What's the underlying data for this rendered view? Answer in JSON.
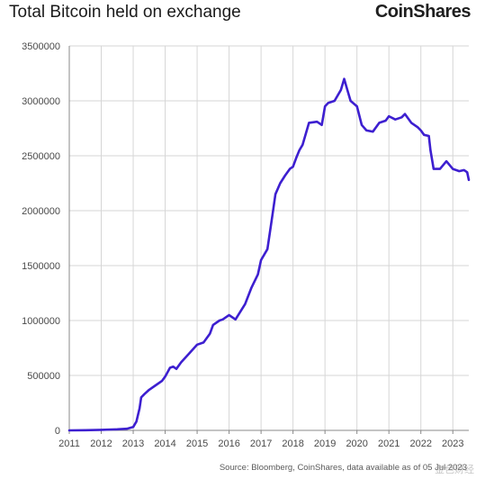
{
  "header": {
    "title": "Total Bitcoin held on exchange",
    "logo": "CoinShares"
  },
  "footer": {
    "source": "Source: Bloomberg, CoinShares, data available as of 05 Jul 2023",
    "watermark": "金色财经"
  },
  "colors": {
    "line": "#3d1fd0",
    "grid": "#d6d6d6",
    "axis": "#888888"
  },
  "chart_data": {
    "type": "line",
    "title": "Total Bitcoin held on exchange",
    "xlabel": "",
    "ylabel": "",
    "xlim": [
      2011,
      2023.5
    ],
    "ylim": [
      0,
      3500000
    ],
    "grid": true,
    "legend": "none",
    "x_ticks": [
      "2011",
      "2012",
      "2013",
      "2014",
      "2015",
      "2016",
      "2017",
      "2018",
      "2019",
      "2020",
      "2021",
      "2022",
      "2023"
    ],
    "y_ticks": [
      "0",
      "500000",
      "1000000",
      "1500000",
      "2000000",
      "2500000",
      "3000000",
      "3500000"
    ],
    "series": [
      {
        "x": [
          2011.0,
          2011.5,
          2012.0,
          2012.5,
          2012.8,
          2013.0,
          2013.1,
          2013.2,
          2013.25,
          2013.35,
          2013.5,
          2013.7,
          2013.9,
          2014.0,
          2014.15,
          2014.25,
          2014.35,
          2014.5,
          2014.75,
          2015.0,
          2015.2,
          2015.4,
          2015.5,
          2015.7,
          2015.8,
          2016.0,
          2016.2,
          2016.5,
          2016.7,
          2016.9,
          2017.0,
          2017.2,
          2017.35,
          2017.45,
          2017.6,
          2017.75,
          2017.9,
          2018.0,
          2018.1,
          2018.2,
          2018.3,
          2018.5,
          2018.75,
          2018.9,
          2019.0,
          2019.1,
          2019.3,
          2019.5,
          2019.6,
          2019.7,
          2019.8,
          2020.0,
          2020.15,
          2020.3,
          2020.5,
          2020.7,
          2020.9,
          2021.0,
          2021.2,
          2021.4,
          2021.5,
          2021.7,
          2021.9,
          2022.0,
          2022.1,
          2022.25,
          2022.3,
          2022.4,
          2022.6,
          2022.8,
          2023.0,
          2023.2,
          2023.35,
          2023.45,
          2023.5
        ],
        "values": [
          0,
          2000,
          5000,
          10000,
          15000,
          30000,
          80000,
          200000,
          300000,
          330000,
          370000,
          410000,
          450000,
          490000,
          570000,
          580000,
          560000,
          620000,
          700000,
          780000,
          800000,
          880000,
          960000,
          1000000,
          1010000,
          1050000,
          1010000,
          1150000,
          1300000,
          1420000,
          1550000,
          1650000,
          1950000,
          2150000,
          2250000,
          2320000,
          2380000,
          2400000,
          2480000,
          2550000,
          2600000,
          2800000,
          2810000,
          2780000,
          2950000,
          2980000,
          3000000,
          3100000,
          3200000,
          3100000,
          3000000,
          2950000,
          2780000,
          2730000,
          2720000,
          2800000,
          2820000,
          2860000,
          2830000,
          2850000,
          2880000,
          2800000,
          2760000,
          2730000,
          2690000,
          2680000,
          2550000,
          2380000,
          2380000,
          2450000,
          2380000,
          2360000,
          2370000,
          2350000,
          2280000
        ]
      }
    ]
  }
}
